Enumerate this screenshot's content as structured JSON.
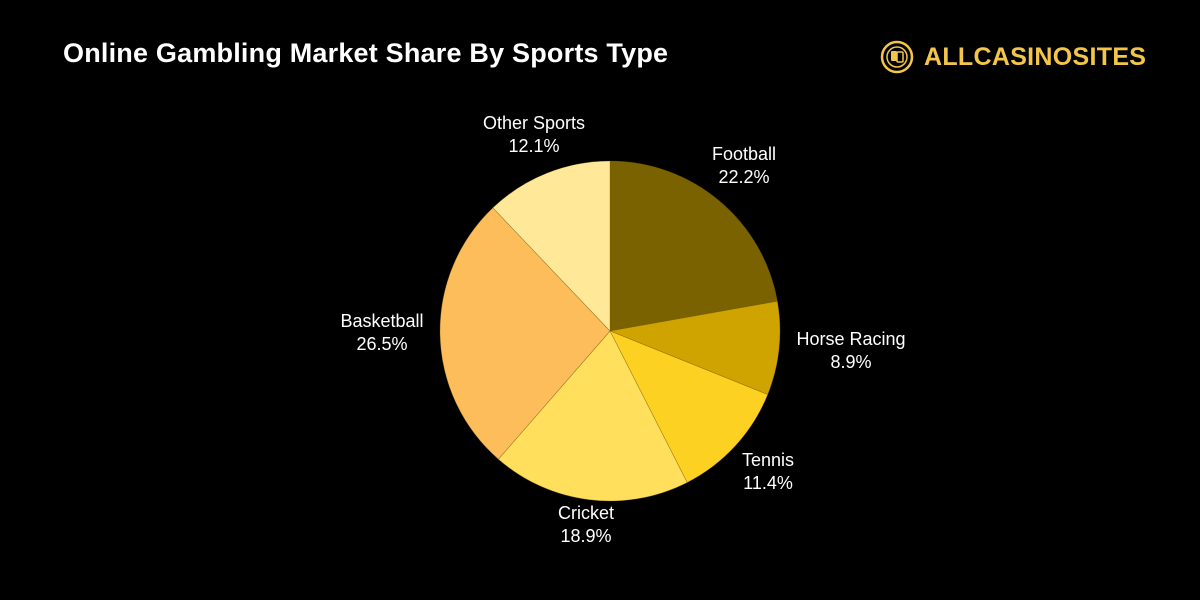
{
  "title": "Online Gambling Market Share By Sports Type",
  "brand": {
    "name": "ALLCASINOSITES",
    "icon": "casino-chip-icon",
    "color": "#f3c64a"
  },
  "chart_data": {
    "type": "pie",
    "title": "Online Gambling Market Share By Sports Type",
    "start_angle": "12 o'clock, clockwise",
    "slices": [
      {
        "label": "Football",
        "value": 22.2,
        "display": "22.2%",
        "color": "#7a6200"
      },
      {
        "label": "Horse Racing",
        "value": 8.9,
        "display": "8.9%",
        "color": "#cfa300"
      },
      {
        "label": "Tennis",
        "value": 11.4,
        "display": "11.4%",
        "color": "#fdd122"
      },
      {
        "label": "Cricket",
        "value": 18.9,
        "display": "18.9%",
        "color": "#ffdf5c"
      },
      {
        "label": "Basketball",
        "value": 26.5,
        "display": "26.5%",
        "color": "#fdbd5a"
      },
      {
        "label": "Other Sports",
        "value": 12.1,
        "display": "12.1%",
        "color": "#ffe999"
      }
    ],
    "legend": "none (labels outside slices)"
  }
}
